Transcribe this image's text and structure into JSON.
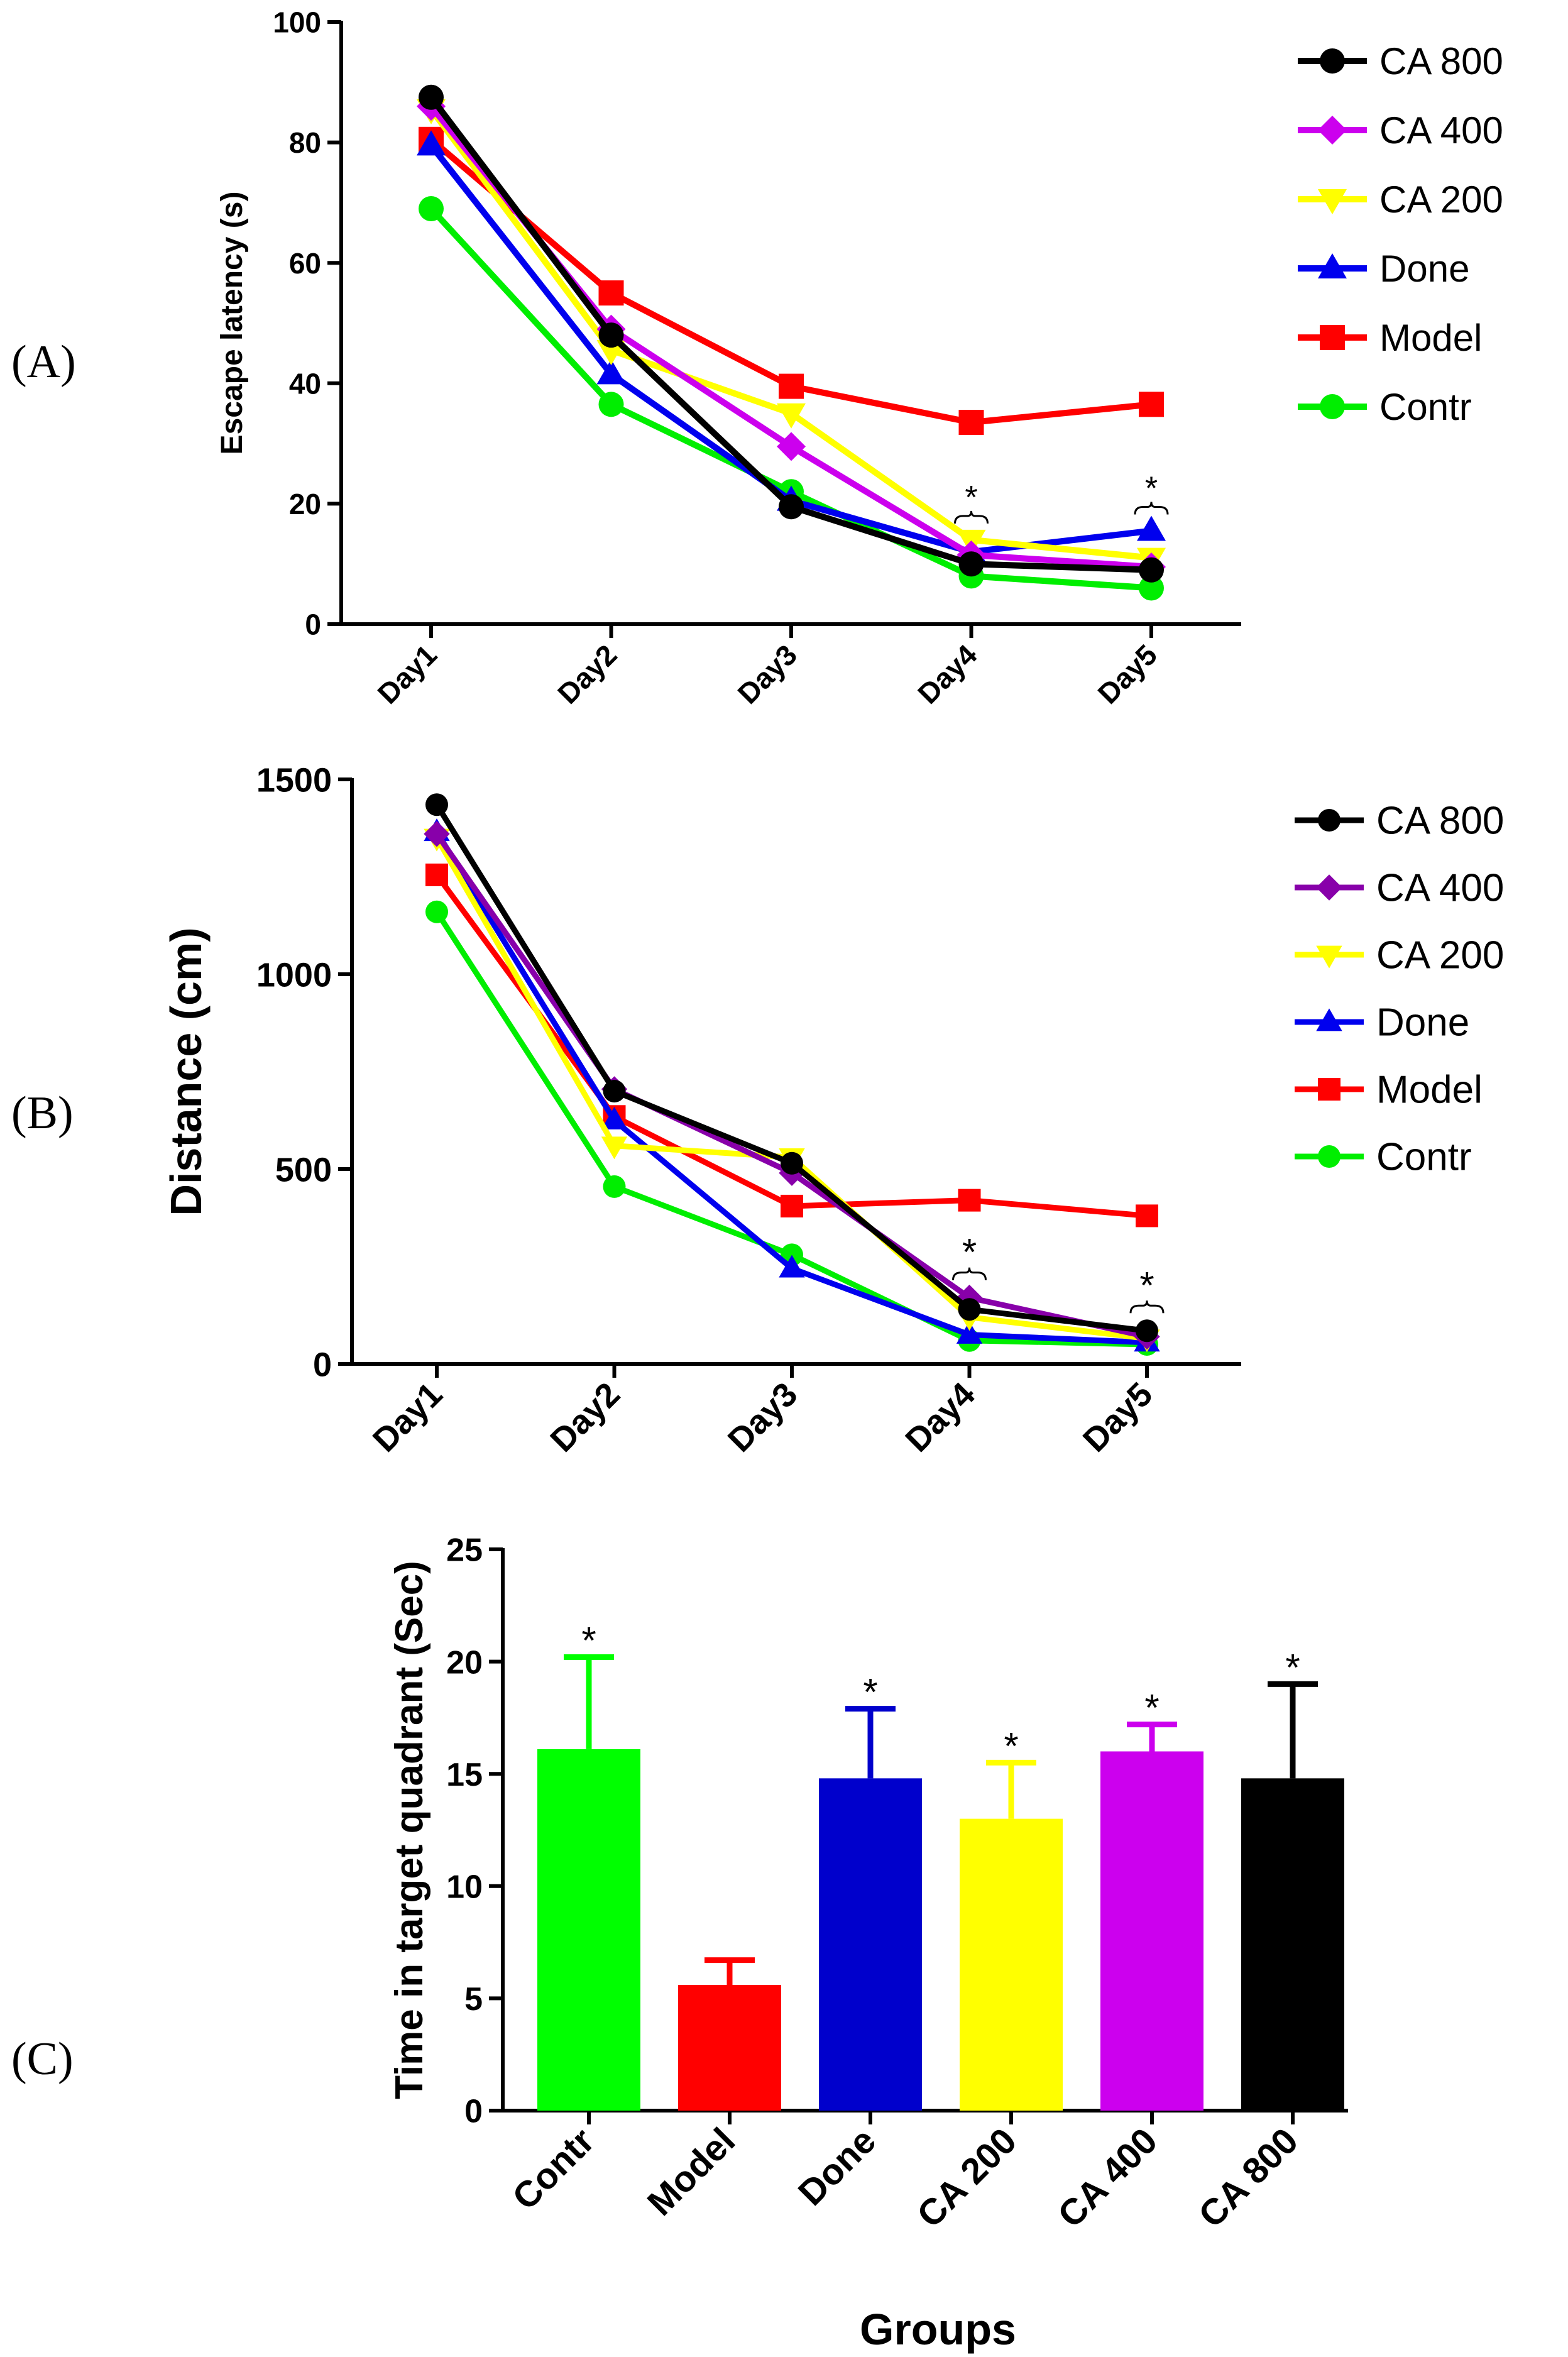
{
  "panels": {
    "A": "(A)",
    "B": "(B)",
    "C": "(C)"
  },
  "chart_data": [
    {
      "id": "A",
      "type": "line",
      "title": "",
      "xlabel": "",
      "ylabel": "Escape latency (s)",
      "categories": [
        "Day1",
        "Day2",
        "Day3",
        "Day4",
        "Day5"
      ],
      "ylim": [
        0,
        100
      ],
      "yticks": [
        0,
        20,
        40,
        60,
        80,
        100
      ],
      "series": [
        {
          "name": "CA 800",
          "color": "#000000",
          "marker": "circle",
          "values": [
            87.5,
            48,
            19.5,
            10,
            9
          ]
        },
        {
          "name": "CA 400",
          "color": "#cc00ee",
          "marker": "diamond",
          "values": [
            86,
            49,
            29.5,
            11.5,
            9.5
          ]
        },
        {
          "name": "CA 200",
          "color": "#ffff00",
          "marker": "triangle-down",
          "values": [
            85.5,
            45.5,
            35,
            14,
            11
          ]
        },
        {
          "name": "Done",
          "color": "#0000ee",
          "marker": "triangle-up",
          "values": [
            79.5,
            41.5,
            20.5,
            12,
            15.5
          ]
        },
        {
          "name": "Model",
          "color": "#ff0000",
          "marker": "square",
          "values": [
            80.5,
            55,
            39.5,
            33.5,
            36.5
          ]
        },
        {
          "name": "Contr",
          "color": "#00ee00",
          "marker": "circle",
          "values": [
            69,
            36.5,
            22,
            8,
            6
          ]
        }
      ],
      "annotations": [
        {
          "category": "Day4",
          "text": "*"
        },
        {
          "category": "Day5",
          "text": "*"
        }
      ],
      "legend": "right"
    },
    {
      "id": "B",
      "type": "line",
      "title": "",
      "xlabel": "",
      "ylabel": "Distance (cm)",
      "categories": [
        "Day1",
        "Day2",
        "Day3",
        "Day4",
        "Day5"
      ],
      "ylim": [
        0,
        1500
      ],
      "yticks": [
        0,
        500,
        1000,
        1500
      ],
      "series": [
        {
          "name": "CA 800",
          "color": "#000000",
          "marker": "circle",
          "values": [
            1435,
            700,
            515,
            140,
            85
          ]
        },
        {
          "name": "CA 400",
          "color": "#8800aa",
          "marker": "diamond",
          "values": [
            1360,
            705,
            490,
            170,
            70
          ]
        },
        {
          "name": "CA 200",
          "color": "#ffff00",
          "marker": "triangle-down",
          "values": [
            1350,
            560,
            530,
            120,
            65
          ]
        },
        {
          "name": "Done",
          "color": "#0000ee",
          "marker": "triangle-up",
          "values": [
            1365,
            625,
            245,
            75,
            55
          ]
        },
        {
          "name": "Model",
          "color": "#ff0000",
          "marker": "square",
          "values": [
            1255,
            635,
            405,
            420,
            380
          ]
        },
        {
          "name": "Contr",
          "color": "#00ee00",
          "marker": "circle",
          "values": [
            1160,
            455,
            280,
            60,
            50
          ]
        }
      ],
      "annotations": [
        {
          "category": "Day4",
          "text": "*"
        },
        {
          "category": "Day5",
          "text": "*"
        }
      ],
      "legend": "right"
    },
    {
      "id": "C",
      "type": "bar",
      "title": "",
      "xlabel": "Groups",
      "ylabel": "Time in target quadrant (Sec)",
      "categories": [
        "Contr",
        "Model",
        "Done",
        "CA 200",
        "CA 400",
        "CA 800"
      ],
      "ylim": [
        0,
        25
      ],
      "yticks": [
        0,
        5,
        10,
        15,
        20,
        25
      ],
      "values": [
        16.1,
        5.6,
        14.8,
        13,
        16,
        14.8
      ],
      "errors": [
        4.1,
        1.1,
        3.1,
        2.5,
        1.2,
        4.2
      ],
      "colors": [
        "#00ff00",
        "#ff0000",
        "#0000cc",
        "#ffff00",
        "#cc00ee",
        "#000000"
      ],
      "significance": [
        "*",
        "",
        "*",
        "*",
        "*",
        "*"
      ]
    }
  ]
}
